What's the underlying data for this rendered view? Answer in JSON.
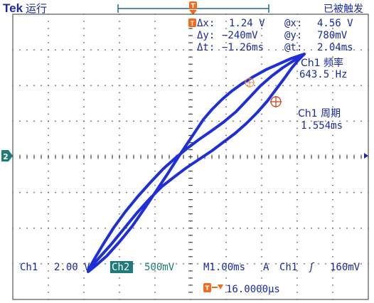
{
  "header": {
    "brand": "Tek",
    "run_state": "运行",
    "trigger_state": "已被触发",
    "trigger_marker": "T"
  },
  "cursor_readout": {
    "dx_label": "Δx:",
    "dx_value": "1.24 V",
    "atx_label": "@x:",
    "atx_value": "4.56 V",
    "dy_label": "Δy:",
    "dy_value": "−240mV",
    "aty_label": "@y:",
    "aty_value": "780mV",
    "dt_label": "Δt:",
    "dt_value": "−1.26ms",
    "att_label": "@t:",
    "att_value": "2.04ms"
  },
  "measurements": [
    {
      "label": "Ch1 频率",
      "value": "643.5 Hz"
    },
    {
      "label": "Ch1 周期",
      "value": "1.554ms"
    }
  ],
  "ground_marker": "2",
  "status_bar": {
    "ch1_label": "Ch1",
    "ch1_scale": "2.00 V",
    "ch2_label": "Ch2",
    "ch2_scale": "500mV",
    "timebase": "M1.00ms",
    "trigger_mode": "A",
    "trigger_source": "Ch1",
    "trigger_slope": "ʃ",
    "trigger_level": "160mV",
    "trigger_position": "16.0000µs"
  },
  "colors": {
    "trace": "#1f2fd6",
    "text": "#1a2a9c",
    "orange": "#f26a1b",
    "ch2_badge": "#1f7a7a",
    "grid": "#333333"
  }
}
